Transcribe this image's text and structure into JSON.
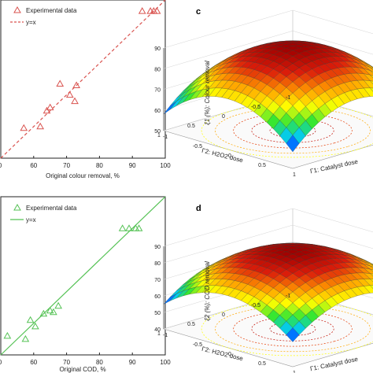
{
  "chart_data": [
    {
      "type": "scatter",
      "xlabel": "Original colour removal, %",
      "ylabel": "",
      "xlim": [
        50,
        100
      ],
      "ylim": [
        50,
        100
      ],
      "x_ticks": [
        "60",
        "70",
        "80",
        "90",
        "100"
      ],
      "first_tick_partial": "0",
      "series": [
        {
          "name": "Experimental data",
          "color": "#d9534f",
          "marker": "triangle",
          "x": [
            57,
            62,
            64,
            65,
            68,
            71,
            72.5,
            73,
            93,
            95.5,
            96.5,
            97.5
          ],
          "y": [
            59.5,
            60,
            65,
            66,
            73.5,
            70,
            68,
            73,
            96.5,
            96.5,
            96.5,
            96.5
          ]
        },
        {
          "name": "y=x",
          "color": "#d9534f",
          "style": "dashed",
          "x": [
            50,
            100
          ],
          "y": [
            50,
            100
          ]
        }
      ]
    },
    {
      "type": "scatter",
      "xlabel": "Original COD, %",
      "ylabel": "",
      "xlim": [
        50,
        100
      ],
      "ylim": [
        50,
        100
      ],
      "x_ticks": [
        "60",
        "70",
        "80",
        "90",
        "100"
      ],
      "first_tick_partial": "0",
      "series": [
        {
          "name": "Experimental data",
          "color": "#55c255",
          "marker": "triangle",
          "x": [
            52,
            57.5,
            59,
            60.5,
            63,
            65,
            66,
            67.5,
            87,
            89,
            91,
            92
          ],
          "y": [
            56,
            55,
            61,
            59,
            63,
            64,
            63.5,
            65.5,
            90,
            90,
            90,
            90
          ]
        },
        {
          "name": "y=x",
          "color": "#55c255",
          "style": "solid",
          "x": [
            50,
            100
          ],
          "y": [
            50,
            100
          ]
        }
      ]
    },
    {
      "type": "surface",
      "panel_label": "c",
      "zlabel": "ξ1 (%): Colour removal",
      "xlabel_axis": "Γ1: Catalyst dose",
      "ylabel_axis": "Γ2: H2O2 dose",
      "z_ticks": [
        "50",
        "60",
        "70",
        "80",
        "90"
      ],
      "x_ticks": [
        "-1",
        "-0.5",
        "0",
        "0.5",
        "1"
      ],
      "y_ticks": [
        "1",
        "0.5",
        "0",
        "-0.5",
        "-1"
      ],
      "zlim": [
        50,
        90
      ],
      "peak": 91,
      "corner": 58,
      "colormap": [
        "#0000ff",
        "#00c8ff",
        "#32e632",
        "#ffff00",
        "#ff9600",
        "#dc1e0a",
        "#a00000"
      ]
    },
    {
      "type": "surface",
      "panel_label": "d",
      "zlabel": "ξ2 (%): COD removal",
      "xlabel_axis": "Γ1: Catalyst dose",
      "ylabel_axis": "Γ2: H2O2 dose",
      "z_ticks": [
        "40",
        "50",
        "60",
        "70",
        "80",
        "90"
      ],
      "x_ticks": [
        "-1",
        "-0.5",
        "0",
        "0.5",
        "1"
      ],
      "y_ticks": [
        "1",
        "0.5",
        "0",
        "-0.5",
        "-1"
      ],
      "zlim": [
        40,
        90
      ],
      "peak": 88,
      "corner": 55,
      "colormap": [
        "#0000ff",
        "#00c8ff",
        "#32e632",
        "#ffff00",
        "#ff9600",
        "#dc1e0a",
        "#a00000"
      ]
    }
  ]
}
